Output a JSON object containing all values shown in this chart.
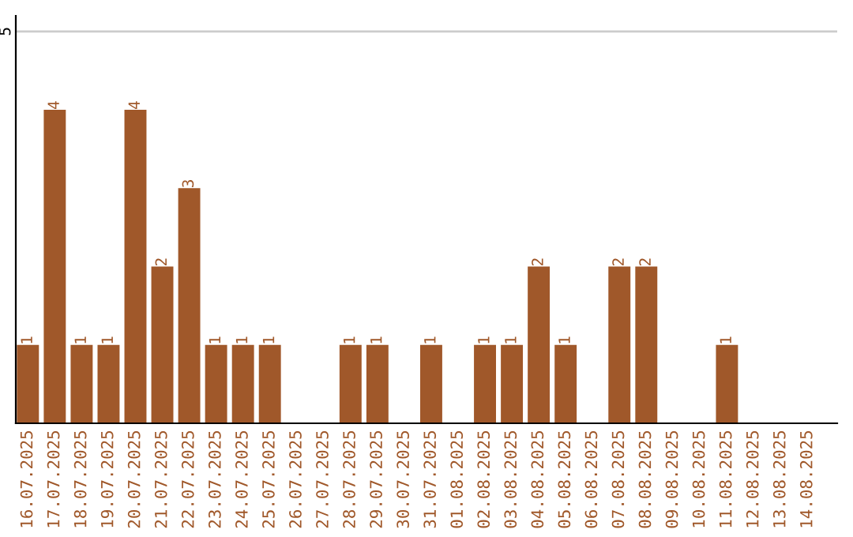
{
  "chart_data": {
    "type": "bar",
    "categories": [
      "16.07.2025",
      "17.07.2025",
      "18.07.2025",
      "19.07.2025",
      "20.07.2025",
      "21.07.2025",
      "22.07.2025",
      "23.07.2025",
      "24.07.2025",
      "25.07.2025",
      "26.07.2025",
      "27.07.2025",
      "28.07.2025",
      "29.07.2025",
      "30.07.2025",
      "31.07.2025",
      "01.08.2025",
      "02.08.2025",
      "03.08.2025",
      "04.08.2025",
      "05.08.2025",
      "06.08.2025",
      "07.08.2025",
      "08.08.2025",
      "09.08.2025",
      "10.08.2025",
      "11.08.2025",
      "12.08.2025",
      "13.08.2025",
      "14.08.2025"
    ],
    "values": [
      1,
      4,
      1,
      1,
      4,
      2,
      3,
      1,
      1,
      1,
      0,
      0,
      1,
      1,
      0,
      1,
      0,
      1,
      1,
      2,
      1,
      0,
      2,
      2,
      0,
      0,
      1,
      0,
      0,
      0
    ],
    "value_labels": [
      "1",
      "4",
      "1",
      "1",
      "4",
      "2",
      "3",
      "1",
      "1",
      "1",
      null,
      null,
      "1",
      "1",
      null,
      "1",
      null,
      "1",
      "1",
      "2",
      "1",
      null,
      "2",
      "2",
      null,
      null,
      "1",
      null,
      null,
      null
    ],
    "color": "#a0582a",
    "ylim": [
      0,
      5.2
    ],
    "yticks": [
      5
    ],
    "grid": "y"
  }
}
